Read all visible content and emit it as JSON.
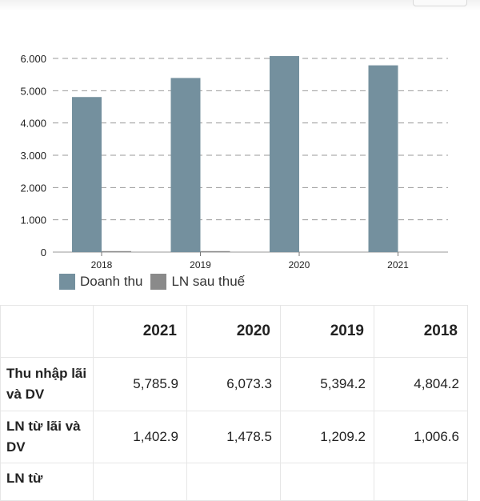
{
  "chart_data": {
    "type": "bar",
    "categories": [
      "2018",
      "2019",
      "2020",
      "2021"
    ],
    "series": [
      {
        "name": "Doanh thu",
        "values": [
          4804.2,
          5394.2,
          6073.3,
          5785.9
        ],
        "color": "#74909e"
      },
      {
        "name": "LN sau thuế",
        "values": [
          30,
          30,
          0,
          0
        ],
        "color": "#8a8a8a"
      }
    ],
    "y_ticks": [
      "0",
      "1.000",
      "2.000",
      "3.000",
      "4.000",
      "5.000",
      "6.000"
    ],
    "ylim": [
      0,
      6000
    ],
    "grid": true,
    "legend_position": "bottom-left"
  },
  "table": {
    "headers": [
      "",
      "2021",
      "2020",
      "2019",
      "2018"
    ],
    "rows": [
      {
        "label": "Thu nhập lãi và DV",
        "values": [
          "5,785.9",
          "6,073.3",
          "5,394.2",
          "4,804.2"
        ]
      },
      {
        "label": "LN từ lãi và DV",
        "values": [
          "1,402.9",
          "1,478.5",
          "1,209.2",
          "1,006.6"
        ]
      },
      {
        "label": "LN từ",
        "values": [
          "",
          "",
          "",
          ""
        ]
      }
    ]
  }
}
